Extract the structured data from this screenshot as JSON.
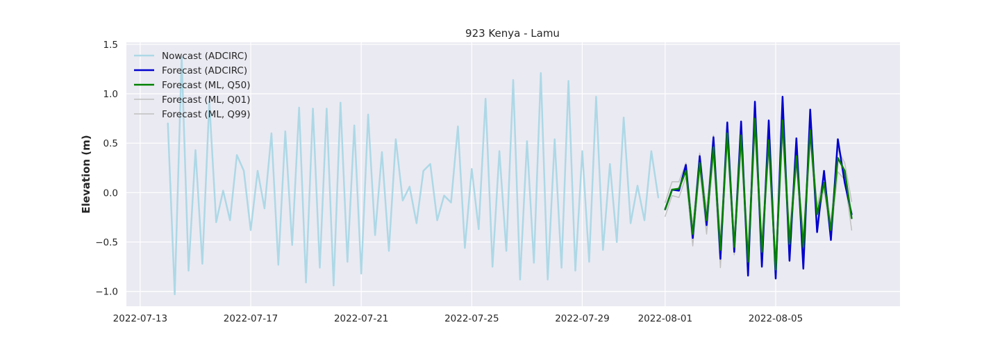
{
  "chart_data": {
    "type": "line",
    "title": "923 Kenya - Lamu",
    "xlabel": "",
    "ylabel": "Elevation (m)",
    "x_ticks": [
      "2022-07-13",
      "2022-07-17",
      "2022-07-21",
      "2022-07-25",
      "2022-07-29",
      "2022-08-01",
      "2022-08-05"
    ],
    "y_ticks": [
      -1.0,
      -0.5,
      0.0,
      0.5,
      1.0,
      1.5
    ],
    "y_tick_labels": [
      "−1.0",
      "−0.5",
      "0.0",
      "0.5",
      "1.0",
      "1.5"
    ],
    "xlim": [
      "2022-07-12 12:00",
      "2022-08-09 12:00"
    ],
    "ylim": [
      -1.15,
      1.52
    ],
    "grid": true,
    "legend_position": "top-left",
    "series": [
      {
        "name": "Nowcast (ADCIRC)",
        "color": "#add8e6",
        "width": 2.5,
        "x": [
          "2022-07-14 00:00",
          "2022-07-14 06:00",
          "2022-07-14 12:00",
          "2022-07-14 18:00",
          "2022-07-15 00:00",
          "2022-07-15 06:00",
          "2022-07-15 12:00",
          "2022-07-15 18:00",
          "2022-07-16 00:00",
          "2022-07-16 06:00",
          "2022-07-16 12:00",
          "2022-07-16 18:00",
          "2022-07-17 00:00",
          "2022-07-17 06:00",
          "2022-07-17 12:00",
          "2022-07-17 18:00",
          "2022-07-18 00:00",
          "2022-07-18 06:00",
          "2022-07-18 12:00",
          "2022-07-18 18:00",
          "2022-07-19 00:00",
          "2022-07-19 06:00",
          "2022-07-19 12:00",
          "2022-07-19 18:00",
          "2022-07-20 00:00",
          "2022-07-20 06:00",
          "2022-07-20 12:00",
          "2022-07-20 18:00",
          "2022-07-21 00:00",
          "2022-07-21 06:00",
          "2022-07-21 12:00",
          "2022-07-21 18:00",
          "2022-07-22 00:00",
          "2022-07-22 06:00",
          "2022-07-22 12:00",
          "2022-07-22 18:00",
          "2022-07-23 00:00",
          "2022-07-23 06:00",
          "2022-07-23 12:00",
          "2022-07-23 18:00",
          "2022-07-24 00:00",
          "2022-07-24 06:00",
          "2022-07-24 12:00",
          "2022-07-24 18:00",
          "2022-07-25 00:00",
          "2022-07-25 06:00",
          "2022-07-25 12:00",
          "2022-07-25 18:00",
          "2022-07-26 00:00",
          "2022-07-26 06:00",
          "2022-07-26 12:00",
          "2022-07-26 18:00",
          "2022-07-27 00:00",
          "2022-07-27 06:00",
          "2022-07-27 12:00",
          "2022-07-27 18:00",
          "2022-07-28 00:00",
          "2022-07-28 06:00",
          "2022-07-28 12:00",
          "2022-07-28 18:00",
          "2022-07-29 00:00",
          "2022-07-29 06:00",
          "2022-07-29 12:00",
          "2022-07-29 18:00",
          "2022-07-30 00:00",
          "2022-07-30 06:00",
          "2022-07-30 12:00",
          "2022-07-30 18:00",
          "2022-07-31 00:00",
          "2022-07-31 06:00",
          "2022-07-31 12:00",
          "2022-07-31 18:00"
        ],
        "y": [
          0.7,
          -1.03,
          1.37,
          -0.79,
          0.43,
          -0.72,
          0.92,
          -0.3,
          0.02,
          -0.28,
          0.38,
          0.22,
          -0.38,
          0.22,
          -0.16,
          0.6,
          -0.73,
          0.62,
          -0.53,
          0.86,
          -0.91,
          0.85,
          -0.76,
          0.85,
          -0.94,
          0.91,
          -0.7,
          0.68,
          -0.82,
          0.79,
          -0.43,
          0.41,
          -0.59,
          0.54,
          -0.08,
          0.06,
          -0.31,
          0.22,
          0.29,
          -0.28,
          -0.03,
          -0.1,
          0.67,
          -0.56,
          0.24,
          -0.37,
          0.95,
          -0.75,
          0.42,
          -0.59,
          1.14,
          -0.88,
          0.52,
          -0.71,
          1.21,
          -0.88,
          0.54,
          -0.76,
          1.13,
          -0.79,
          0.42,
          -0.7,
          0.97,
          -0.58,
          0.29,
          -0.5,
          0.76,
          -0.31,
          0.07,
          -0.28,
          0.42,
          -0.05
        ]
      },
      {
        "name": "Forecast (ADCIRC)",
        "color": "#0000cd",
        "width": 2.5,
        "x": [
          "2022-08-01 00:00",
          "2022-08-01 06:00",
          "2022-08-01 12:00",
          "2022-08-01 18:00",
          "2022-08-02 00:00",
          "2022-08-02 06:00",
          "2022-08-02 12:00",
          "2022-08-02 18:00",
          "2022-08-03 00:00",
          "2022-08-03 06:00",
          "2022-08-03 12:00",
          "2022-08-03 18:00",
          "2022-08-04 00:00",
          "2022-08-04 06:00",
          "2022-08-04 12:00",
          "2022-08-04 18:00",
          "2022-08-05 00:00",
          "2022-08-05 06:00",
          "2022-08-05 12:00",
          "2022-08-05 18:00",
          "2022-08-06 00:00",
          "2022-08-06 06:00",
          "2022-08-06 12:00",
          "2022-08-06 18:00",
          "2022-08-07 00:00",
          "2022-08-07 06:00",
          "2022-08-07 12:00",
          "2022-08-07 18:00"
        ],
        "y": [
          -0.17,
          0.03,
          0.02,
          0.28,
          -0.46,
          0.37,
          -0.33,
          0.56,
          -0.67,
          0.71,
          -0.6,
          0.72,
          -0.84,
          0.92,
          -0.75,
          0.73,
          -0.87,
          0.97,
          -0.69,
          0.55,
          -0.77,
          0.84,
          -0.4,
          0.22,
          -0.48,
          0.54,
          0.1,
          -0.22
        ]
      },
      {
        "name": "Forecast (ML, Q50)",
        "color": "#008000",
        "width": 2.5,
        "x": [
          "2022-08-01 00:00",
          "2022-08-01 06:00",
          "2022-08-01 12:00",
          "2022-08-01 18:00",
          "2022-08-02 00:00",
          "2022-08-02 06:00",
          "2022-08-02 12:00",
          "2022-08-02 18:00",
          "2022-08-03 00:00",
          "2022-08-03 06:00",
          "2022-08-03 12:00",
          "2022-08-03 18:00",
          "2022-08-04 00:00",
          "2022-08-04 06:00",
          "2022-08-04 12:00",
          "2022-08-04 18:00",
          "2022-08-05 00:00",
          "2022-08-05 06:00",
          "2022-08-05 12:00",
          "2022-08-05 18:00",
          "2022-08-06 00:00",
          "2022-08-06 06:00",
          "2022-08-06 12:00",
          "2022-08-06 18:00",
          "2022-08-07 00:00",
          "2022-08-07 06:00",
          "2022-08-07 12:00",
          "2022-08-07 18:00"
        ],
        "y": [
          -0.17,
          0.03,
          0.04,
          0.22,
          -0.42,
          0.3,
          -0.28,
          0.46,
          -0.58,
          0.6,
          -0.55,
          0.58,
          -0.7,
          0.75,
          -0.6,
          0.53,
          -0.78,
          0.73,
          -0.52,
          0.37,
          -0.55,
          0.63,
          -0.22,
          0.1,
          -0.38,
          0.35,
          0.22,
          -0.26
        ]
      },
      {
        "name": "Forecast (ML, Q01)",
        "color": "#c0c0c0",
        "width": 1.5,
        "x": [
          "2022-08-01 00:00",
          "2022-08-01 06:00",
          "2022-08-01 12:00",
          "2022-08-01 18:00",
          "2022-08-02 00:00",
          "2022-08-02 06:00",
          "2022-08-02 12:00",
          "2022-08-02 18:00",
          "2022-08-03 00:00",
          "2022-08-03 06:00",
          "2022-08-03 12:00",
          "2022-08-03 18:00",
          "2022-08-04 00:00",
          "2022-08-04 06:00",
          "2022-08-04 12:00",
          "2022-08-04 18:00",
          "2022-08-05 00:00",
          "2022-08-05 06:00",
          "2022-08-05 12:00",
          "2022-08-05 18:00",
          "2022-08-06 00:00",
          "2022-08-06 06:00",
          "2022-08-06 12:00",
          "2022-08-06 18:00",
          "2022-08-07 00:00",
          "2022-08-07 06:00",
          "2022-08-07 12:00",
          "2022-08-07 18:00"
        ],
        "y": [
          -0.24,
          -0.03,
          -0.05,
          0.16,
          -0.54,
          0.24,
          -0.42,
          0.38,
          -0.76,
          0.52,
          -0.63,
          0.48,
          -0.82,
          0.62,
          -0.68,
          0.45,
          -0.86,
          0.62,
          -0.62,
          0.28,
          -0.64,
          0.52,
          -0.31,
          0.04,
          -0.46,
          0.21,
          0.13,
          -0.38
        ]
      },
      {
        "name": "Forecast (ML, Q99)",
        "color": "#c0c0c0",
        "width": 1.5,
        "x": [
          "2022-08-01 00:00",
          "2022-08-01 06:00",
          "2022-08-01 12:00",
          "2022-08-01 18:00",
          "2022-08-02 00:00",
          "2022-08-02 06:00",
          "2022-08-02 12:00",
          "2022-08-02 18:00",
          "2022-08-03 00:00",
          "2022-08-03 06:00",
          "2022-08-03 12:00",
          "2022-08-03 18:00",
          "2022-08-04 00:00",
          "2022-08-04 06:00",
          "2022-08-04 12:00",
          "2022-08-04 18:00",
          "2022-08-05 00:00",
          "2022-08-05 06:00",
          "2022-08-05 12:00",
          "2022-08-05 18:00",
          "2022-08-06 00:00",
          "2022-08-06 06:00",
          "2022-08-06 12:00",
          "2022-08-06 18:00",
          "2022-08-07 00:00",
          "2022-08-07 06:00",
          "2022-08-07 12:00",
          "2022-08-07 18:00"
        ],
        "y": [
          -0.1,
          0.11,
          0.11,
          0.3,
          -0.34,
          0.4,
          -0.18,
          0.58,
          -0.48,
          0.68,
          -0.45,
          0.68,
          -0.6,
          0.85,
          -0.5,
          0.62,
          -0.68,
          0.85,
          -0.42,
          0.45,
          -0.46,
          0.72,
          -0.14,
          0.17,
          -0.3,
          0.44,
          0.3,
          -0.09
        ]
      }
    ]
  }
}
